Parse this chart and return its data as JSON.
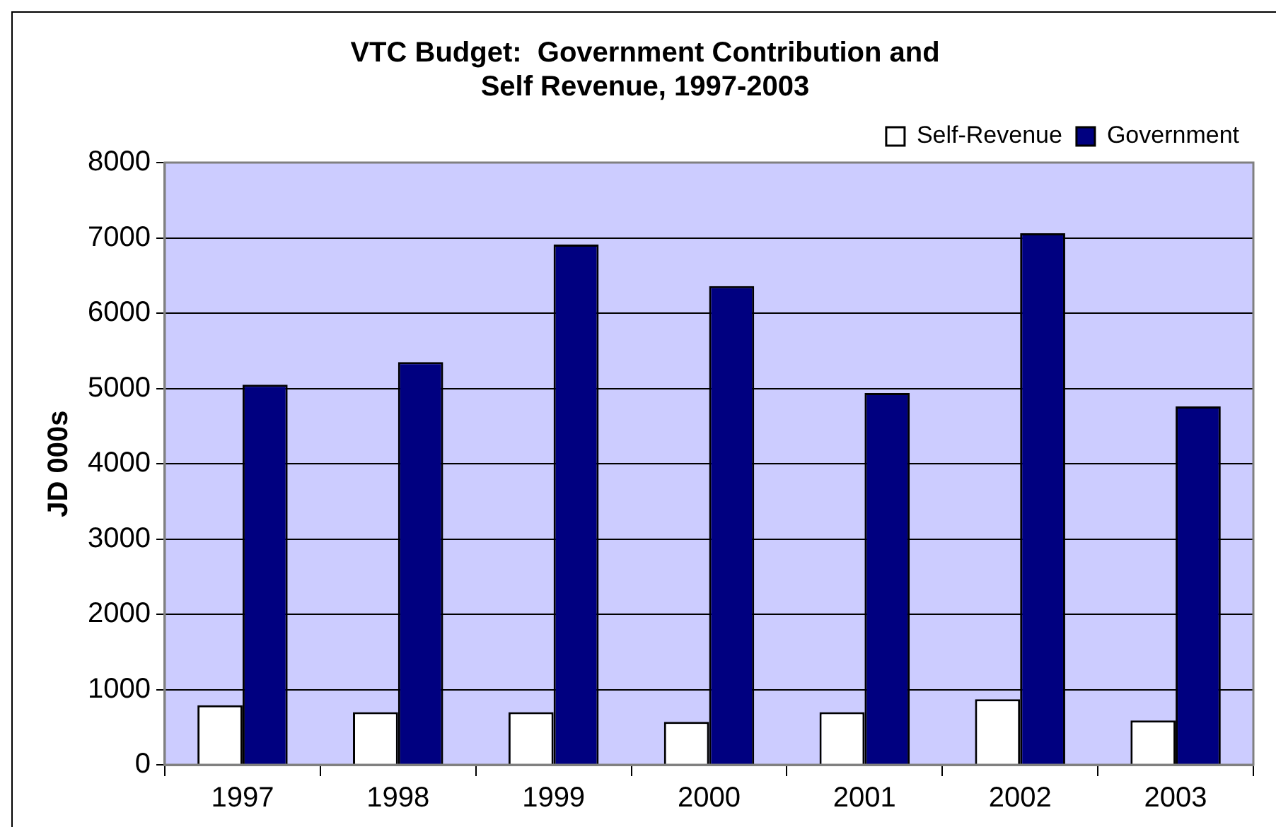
{
  "chart_data": {
    "type": "bar",
    "title": "VTC Budget:  Government Contribution and Self Revenue, 1997-2003",
    "ylabel": "JD 000s",
    "categories": [
      "1997",
      "1998",
      "1999",
      "2000",
      "2001",
      "2002",
      "2003"
    ],
    "series": [
      {
        "name": "Self-Revenue",
        "color": "#ffffff",
        "values": [
          790,
          700,
          700,
          570,
          700,
          870,
          590
        ]
      },
      {
        "name": "Government",
        "color": "#000080",
        "values": [
          5050,
          5350,
          6910,
          6360,
          4940,
          7060,
          4760
        ]
      }
    ],
    "ylim": [
      0,
      8000
    ],
    "yticks": [
      0,
      1000,
      2000,
      3000,
      4000,
      5000,
      6000,
      7000,
      8000
    ],
    "grid": "y",
    "legend": "top right"
  }
}
